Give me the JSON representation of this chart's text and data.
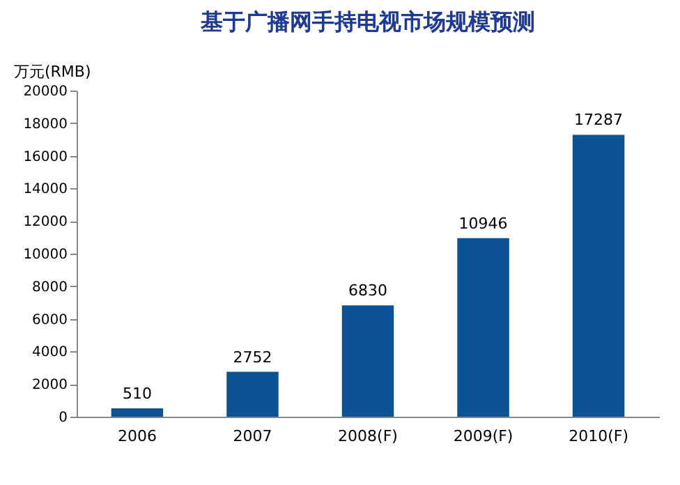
{
  "chart_data": {
    "type": "bar",
    "title": "基于广播网手持电视市场规模预测",
    "ylabel": "万元(RMB)",
    "categories": [
      "2006",
      "2007",
      "2008(F)",
      "2009(F)",
      "2010(F)"
    ],
    "values": [
      510,
      2752,
      6830,
      10946,
      17287
    ],
    "color": "#0b5394",
    "ylim": [
      0,
      20000
    ],
    "yticks": [
      0,
      2000,
      4000,
      6000,
      8000,
      10000,
      12000,
      14000,
      16000,
      18000,
      20000
    ],
    "grid": false,
    "data_labels": true
  }
}
